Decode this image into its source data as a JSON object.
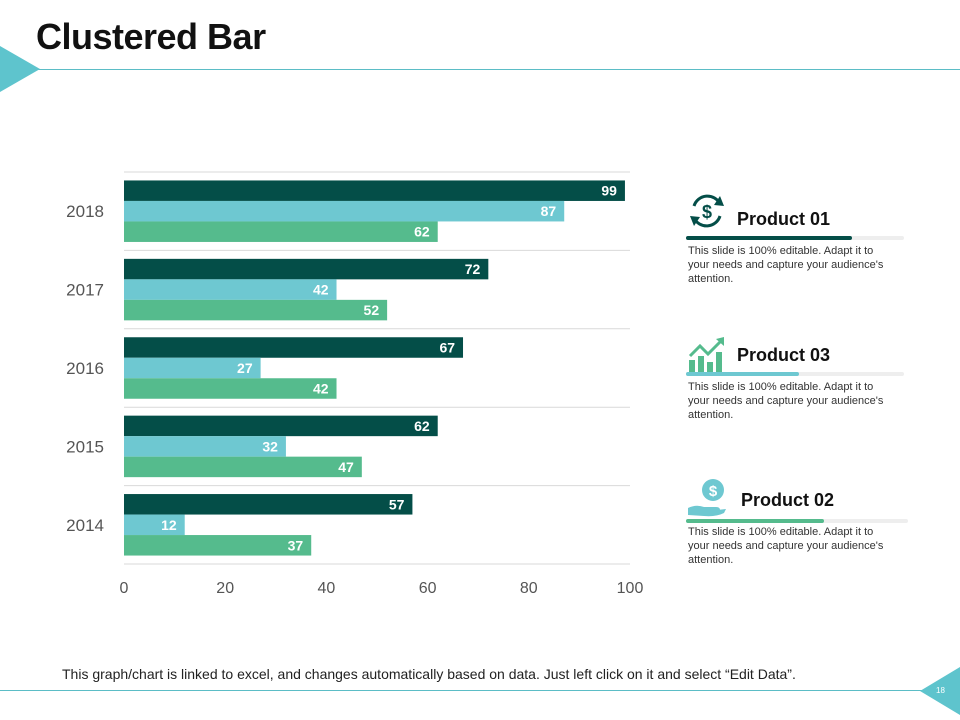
{
  "slide": {
    "title": "Clustered Bar",
    "footer": "This graph/chart is linked to excel, and changes automatically  based on data. Just left click on it and select “Edit Data”.",
    "page_number": "18"
  },
  "colors": {
    "dark": "#044e48",
    "light": "#6ec8d1",
    "green": "#55bb8d",
    "accent": "#5ec4cd",
    "grid": "#d9d9d9"
  },
  "chart_data": {
    "type": "bar",
    "orientation": "horizontal",
    "categories": [
      "2018",
      "2017",
      "2016",
      "2015",
      "2014"
    ],
    "series": [
      {
        "name": "Product 01",
        "color_key": "dark",
        "values": [
          99,
          72,
          67,
          62,
          57
        ]
      },
      {
        "name": "Product 03",
        "color_key": "light",
        "values": [
          87,
          42,
          27,
          32,
          12
        ]
      },
      {
        "name": "Product 02",
        "color_key": "green",
        "values": [
          62,
          52,
          42,
          47,
          37
        ]
      }
    ],
    "xlim": [
      0,
      100
    ],
    "xticks": [
      "0",
      "20",
      "40",
      "60",
      "80",
      "100"
    ],
    "grid": true,
    "title": "",
    "xlabel": "",
    "ylabel": ""
  },
  "legend": [
    {
      "name": "Product 01",
      "icon": "dollar-cycle-icon",
      "color_key": "dark",
      "progress": 0.76,
      "desc": "This slide is 100% editable. Adapt it to your needs and capture your audience's attention."
    },
    {
      "name": "Product 03",
      "icon": "growth-chart-icon",
      "color_key": "light",
      "progress": 0.52,
      "desc": "This slide is 100% editable. Adapt it to your needs and capture your audience's attention."
    },
    {
      "name": "Product 02",
      "icon": "dollar-hand-icon",
      "color_key": "green",
      "progress": 0.62,
      "desc": "This slide is 100% editable. Adapt it to your needs and capture your audience's attention."
    }
  ]
}
